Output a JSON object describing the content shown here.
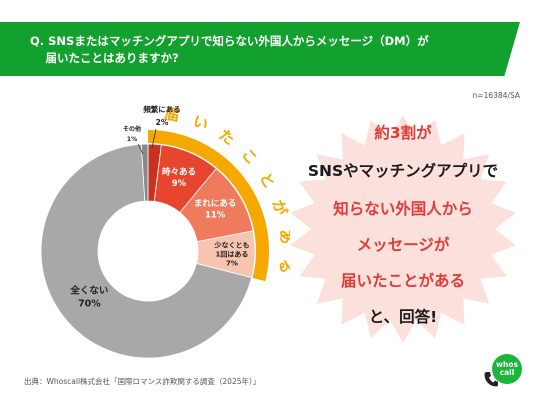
{
  "header": {
    "title": "Q. SNSまたはマッチングアプリで知らない外国人からメッセージ（DM）が\n　 届いたことはありますか?",
    "band_color": "#12a02e"
  },
  "sample_note": "n=16384/SA",
  "source": "出典：Whoscall株式会社「国際ロマンス詐欺関する調査（2025年）」",
  "chart_data": {
    "type": "pie",
    "style": "donut",
    "categories": [
      "頻繁にある",
      "時々ある",
      "まれにある",
      "少なくとも1回はある",
      "全くない",
      "その他"
    ],
    "values": [
      2,
      9,
      11,
      7,
      70,
      1
    ],
    "value_labels": [
      "2%",
      "9%",
      "11%",
      "7%",
      "70%",
      "1%"
    ],
    "colors": [
      "#c8321f",
      "#e5462d",
      "#f07a5e",
      "#f7c4b0",
      "#a8a8a8",
      "#8a8a8a"
    ],
    "group_label": "届いたことがある",
    "group_color": "#f5a800"
  },
  "callout": {
    "lines": [
      "約3割が",
      "SNSやマッチングアプリで",
      "知らない外国人から",
      "メッセージが",
      "届いたことがある",
      "と、回答!"
    ],
    "burst_color": "#fbe0dc"
  },
  "logo": {
    "text": "whos call",
    "color": "#1bb53c"
  }
}
